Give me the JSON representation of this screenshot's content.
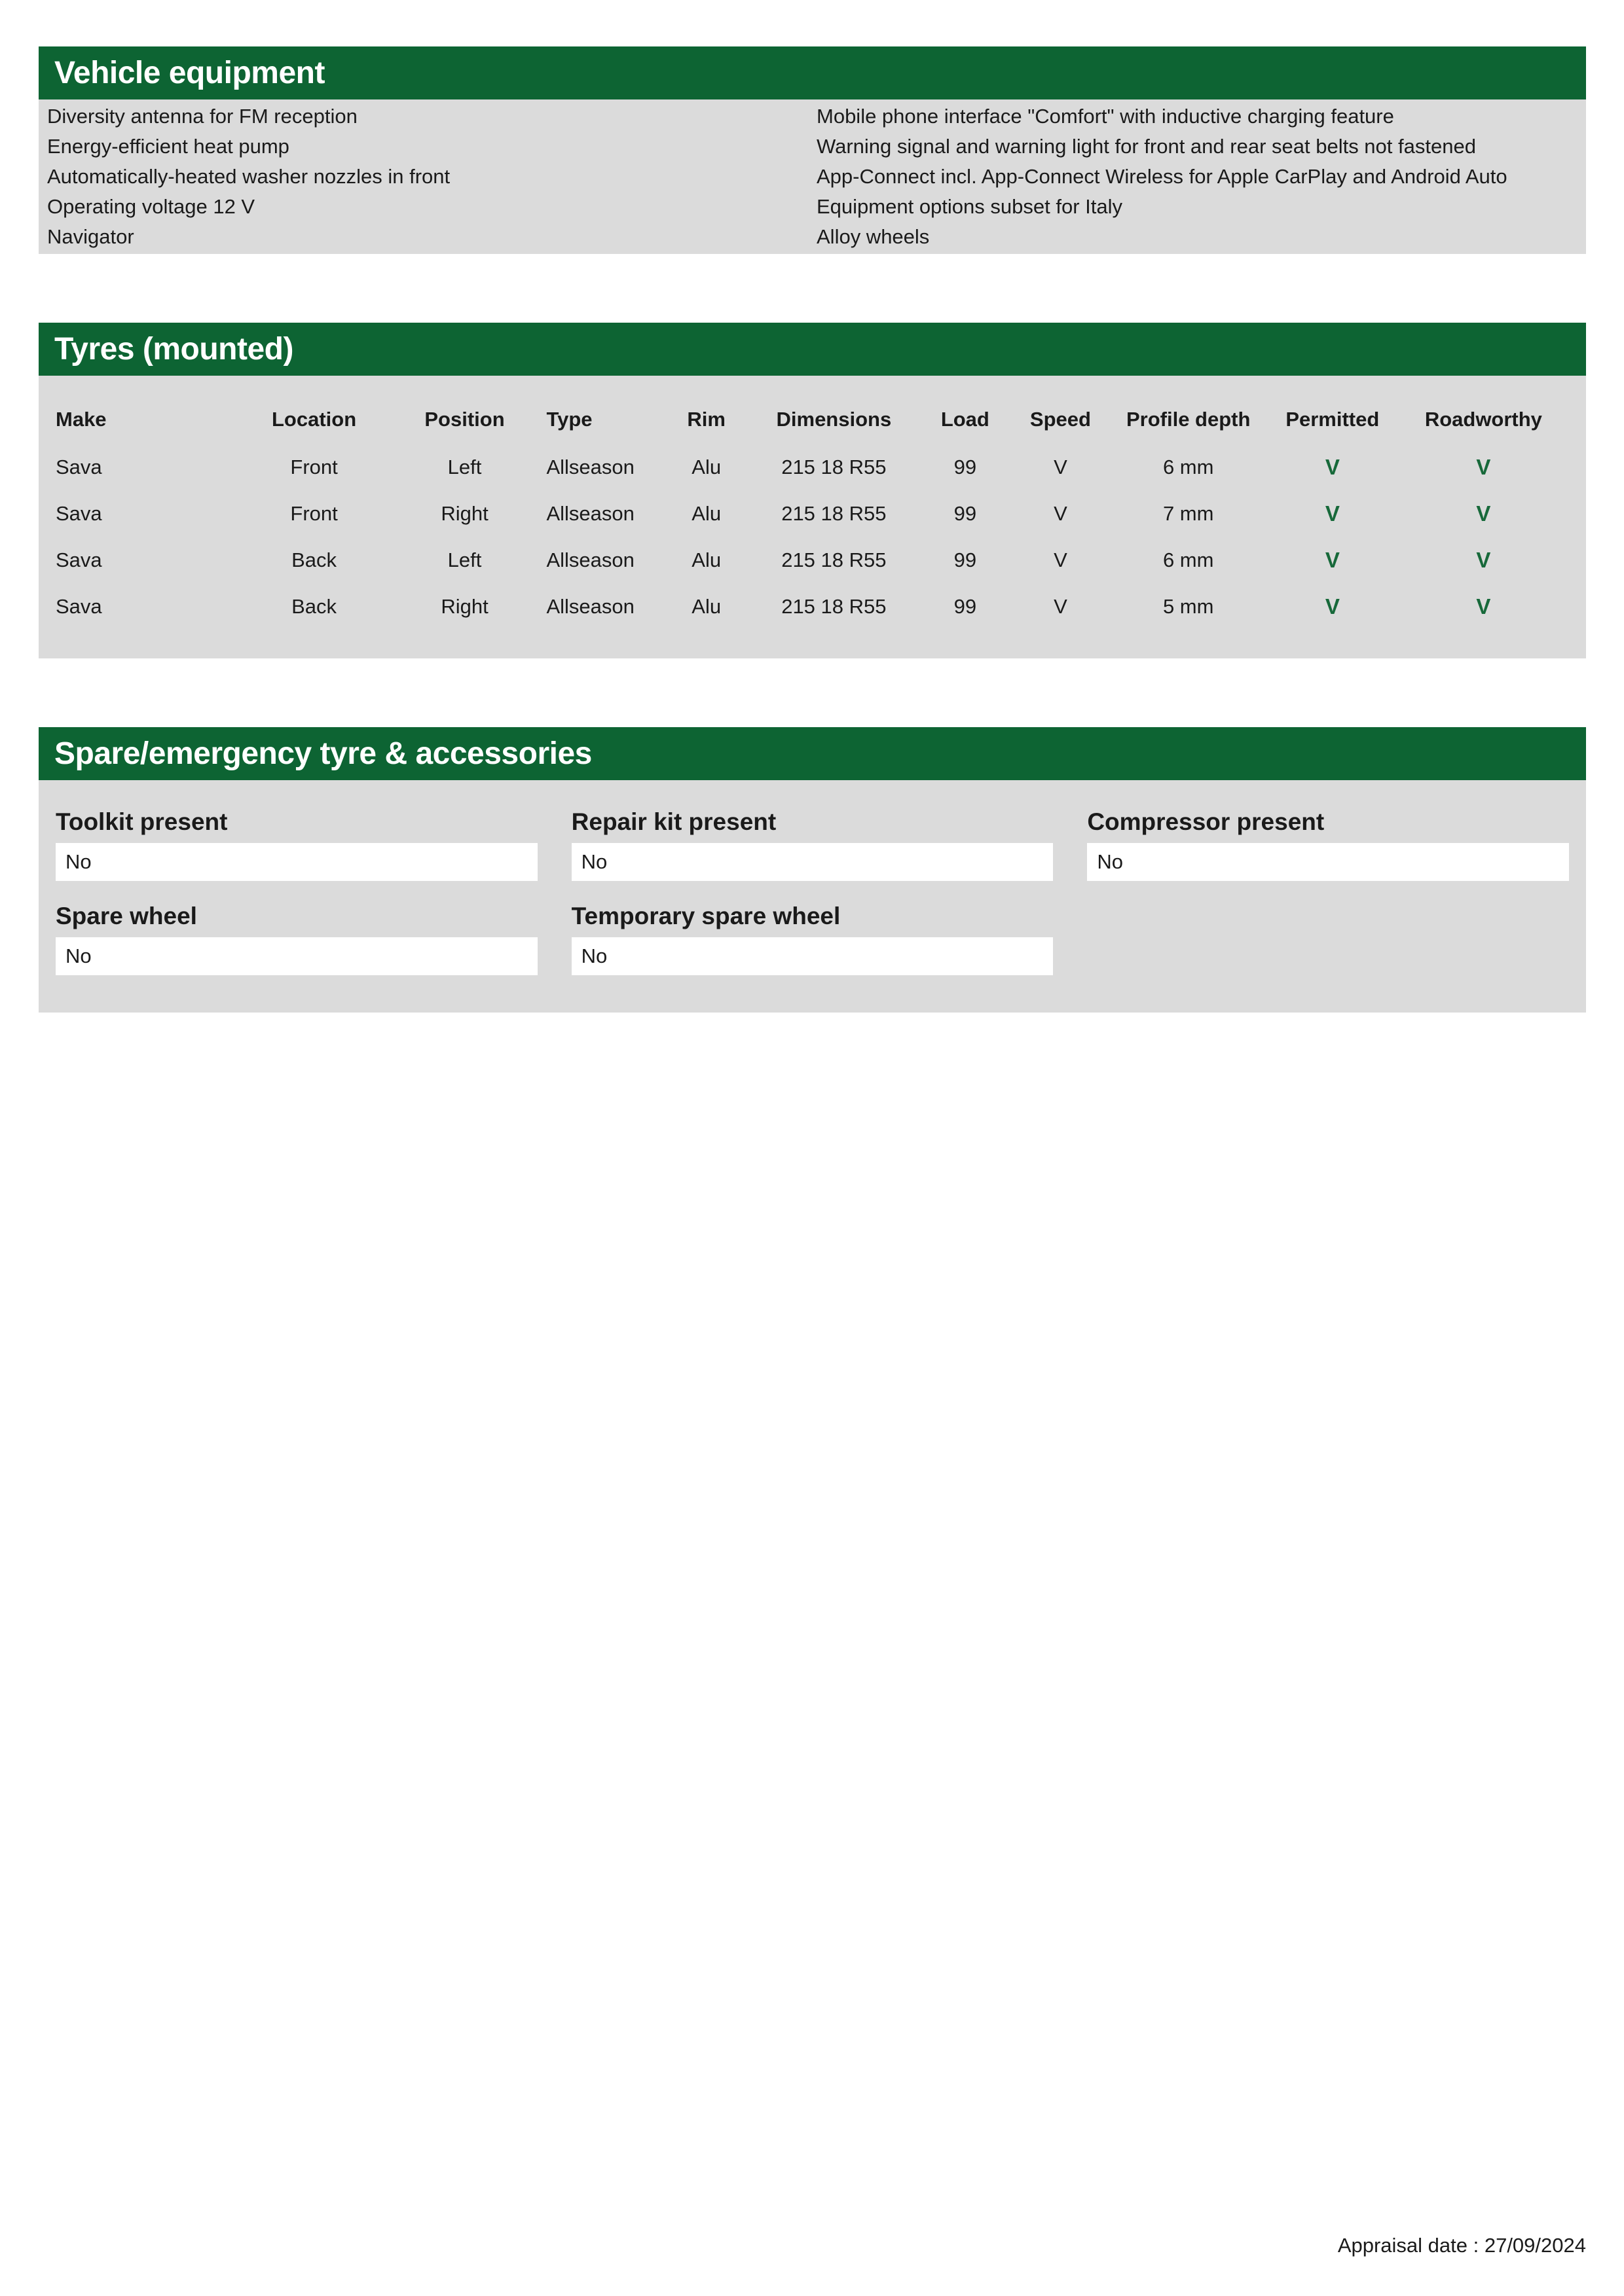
{
  "colors": {
    "header_green": "#0d6433",
    "check_green": "#17693a",
    "panel_gray": "#dbdbdb",
    "field_white": "#ffffff"
  },
  "sections": {
    "vehicle_equipment": {
      "title": "Vehicle equipment",
      "left_items": [
        "Diversity antenna for FM reception",
        "Energy-efficient heat pump",
        "Automatically-heated washer nozzles in front",
        "Operating voltage 12 V",
        "Navigator"
      ],
      "right_items": [
        "Mobile phone interface \"Comfort\" with inductive charging feature",
        "Warning signal and warning light for front and rear seat belts not fastened",
        "App-Connect incl. App-Connect Wireless for Apple CarPlay and Android Auto",
        "Equipment options subset for Italy",
        "Alloy wheels"
      ]
    },
    "tyres": {
      "title": "Tyres (mounted)",
      "columns": [
        "Make",
        "Location",
        "Position",
        "Type",
        "Rim",
        "Dimensions",
        "Load",
        "Speed",
        "Profile depth",
        "Permitted",
        "Roadworthy"
      ],
      "rows": [
        {
          "make": "Sava",
          "location": "Front",
          "position": "Left",
          "type": "Allseason",
          "rim": "Alu",
          "dimensions": "215 18 R55",
          "load": "99",
          "speed": "V",
          "profile_depth": "6 mm",
          "permitted": "V",
          "roadworthy": "V"
        },
        {
          "make": "Sava",
          "location": "Front",
          "position": "Right",
          "type": "Allseason",
          "rim": "Alu",
          "dimensions": "215 18 R55",
          "load": "99",
          "speed": "V",
          "profile_depth": "7 mm",
          "permitted": "V",
          "roadworthy": "V"
        },
        {
          "make": "Sava",
          "location": "Back",
          "position": "Left",
          "type": "Allseason",
          "rim": "Alu",
          "dimensions": "215 18 R55",
          "load": "99",
          "speed": "V",
          "profile_depth": "6 mm",
          "permitted": "V",
          "roadworthy": "V"
        },
        {
          "make": "Sava",
          "location": "Back",
          "position": "Right",
          "type": "Allseason",
          "rim": "Alu",
          "dimensions": "215 18 R55",
          "load": "99",
          "speed": "V",
          "profile_depth": "5 mm",
          "permitted": "V",
          "roadworthy": "V"
        }
      ]
    },
    "spare": {
      "title": "Spare/emergency tyre & accessories",
      "fields": [
        {
          "label": "Toolkit present",
          "value": "No"
        },
        {
          "label": "Repair kit present",
          "value": "No"
        },
        {
          "label": "Compressor present",
          "value": "No"
        },
        {
          "label": "Spare wheel",
          "value": "No"
        },
        {
          "label": "Temporary spare wheel",
          "value": "No"
        }
      ]
    }
  },
  "footer": {
    "appraisal_date": "Appraisal date : 27/09/2024"
  }
}
